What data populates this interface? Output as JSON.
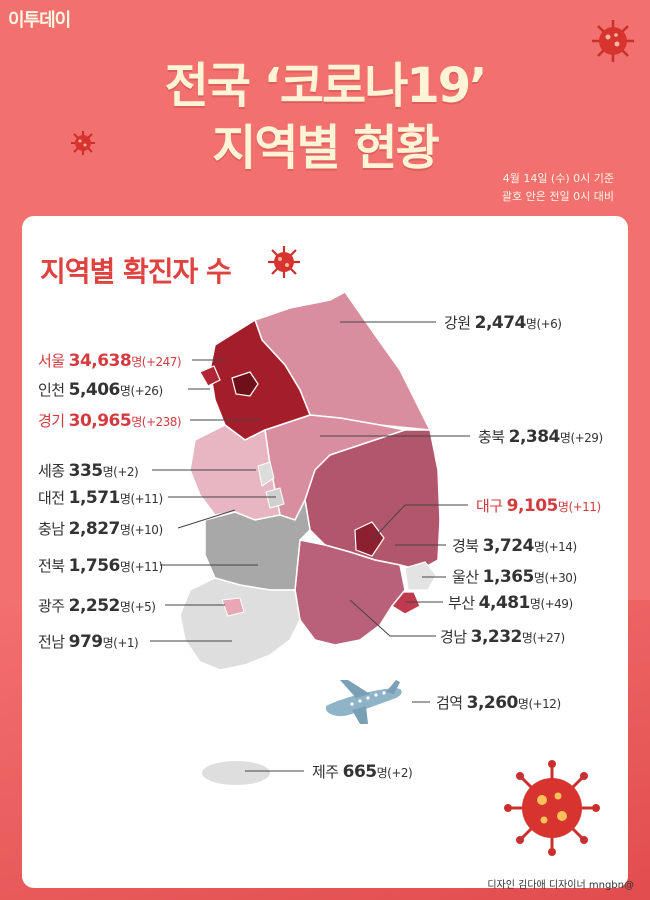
{
  "header": {
    "logo": "이투데이",
    "title_line1": "전국 ‘코로나19’",
    "title_line2": "지역별 현황",
    "date_note": "4월 14일 (수) 0시 기준",
    "compare_note": "괄호 안은 전일 0시 대비"
  },
  "card": {
    "title": "지역별 확진자 수"
  },
  "colors": {
    "background": "#f2706e",
    "title_text": "#fff4d6",
    "accent_red": "#e0433f",
    "seoul": "#7a1620",
    "gyeonggi": "#a31e2a",
    "north_pink": "#d98ea0",
    "daegu_gyeongbuk": "#b2566c",
    "gyeongnam": "#b9617a",
    "jeonbuk": "#a8a8a8",
    "jeonnam": "#dedede"
  },
  "regions": [
    {
      "name": "강원",
      "count": "2,474",
      "unit": "명",
      "change": "(+6)"
    },
    {
      "name": "서울",
      "count": "34,638",
      "unit": "명",
      "change": "(+247)"
    },
    {
      "name": "인천",
      "count": "5,406",
      "unit": "명",
      "change": "(+26)"
    },
    {
      "name": "경기",
      "count": "30,965",
      "unit": "명",
      "change": "(+238)"
    },
    {
      "name": "충북",
      "count": "2,384",
      "unit": "명",
      "change": "(+29)"
    },
    {
      "name": "세종",
      "count": "335",
      "unit": "명",
      "change": "(+2)"
    },
    {
      "name": "대전",
      "count": "1,571",
      "unit": "명",
      "change": "(+11)"
    },
    {
      "name": "충남",
      "count": "2,827",
      "unit": "명",
      "change": "(+10)"
    },
    {
      "name": "대구",
      "count": "9,105",
      "unit": "명",
      "change": "(+11)"
    },
    {
      "name": "경북",
      "count": "3,724",
      "unit": "명",
      "change": "(+14)"
    },
    {
      "name": "울산",
      "count": "1,365",
      "unit": "명",
      "change": "(+30)"
    },
    {
      "name": "전북",
      "count": "1,756",
      "unit": "명",
      "change": "(+11)"
    },
    {
      "name": "부산",
      "count": "4,481",
      "unit": "명",
      "change": "(+49)"
    },
    {
      "name": "광주",
      "count": "2,252",
      "unit": "명",
      "change": "(+5)"
    },
    {
      "name": "경남",
      "count": "3,232",
      "unit": "명",
      "change": "(+27)"
    },
    {
      "name": "전남",
      "count": "979",
      "unit": "명",
      "change": "(+1)"
    },
    {
      "name": "검역",
      "count": "3,260",
      "unit": "명",
      "change": "(+12)"
    },
    {
      "name": "제주",
      "count": "665",
      "unit": "명",
      "change": "(+2)"
    }
  ],
  "icons": [
    "virus-icon",
    "airplane-icon"
  ],
  "credit": "디자인 김다애 디자이너 mngbn@"
}
